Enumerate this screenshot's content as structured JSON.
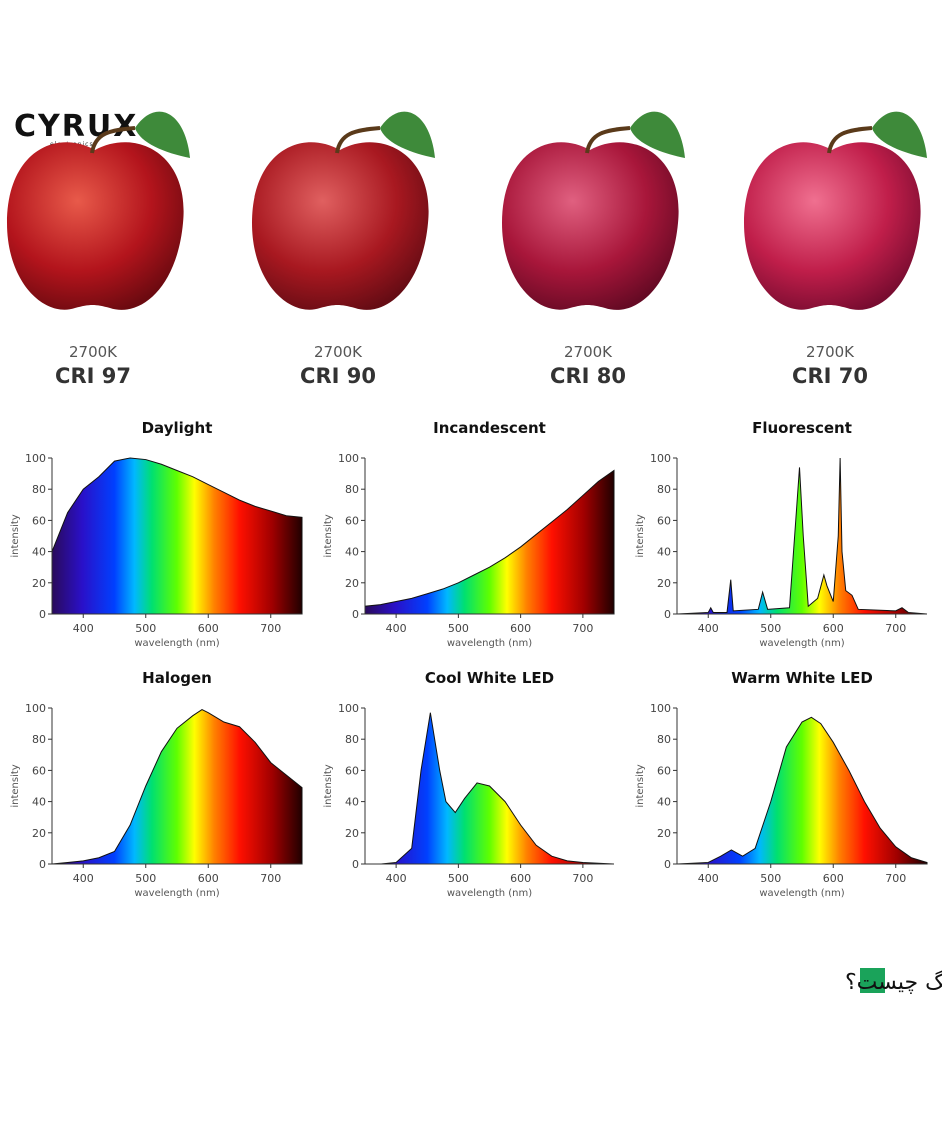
{
  "logo": {
    "name": "CYRUX",
    "tagline": "electronics"
  },
  "apples": [
    {
      "kelvin": "2700K",
      "cri": "CRI 97"
    },
    {
      "kelvin": "2700K",
      "cri": "CRI 90"
    },
    {
      "kelvin": "2700K",
      "cri": "CRI 80"
    },
    {
      "kelvin": "2700K",
      "cri": "CRI 70"
    }
  ],
  "chart_data": [
    {
      "type": "area",
      "title": "Daylight",
      "xlabel": "wavelength (nm)",
      "ylabel": "intensity",
      "x": [
        350,
        375,
        400,
        425,
        450,
        475,
        500,
        525,
        550,
        575,
        600,
        625,
        650,
        675,
        700,
        725,
        750
      ],
      "values": [
        40,
        65,
        80,
        88,
        98,
        100,
        99,
        96,
        92,
        88,
        83,
        78,
        73,
        69,
        66,
        63,
        62
      ],
      "xlim": [
        350,
        750
      ],
      "ylim": [
        0,
        100
      ],
      "xticks": [
        400,
        500,
        600,
        700
      ],
      "yticks": [
        0,
        20,
        40,
        60,
        80,
        100
      ]
    },
    {
      "type": "area",
      "title": "Incandescent",
      "xlabel": "wavelength (nm)",
      "ylabel": "intensity",
      "x": [
        350,
        375,
        400,
        425,
        450,
        475,
        500,
        525,
        550,
        575,
        600,
        625,
        650,
        675,
        700,
        725,
        750
      ],
      "values": [
        5,
        6,
        8,
        10,
        13,
        16,
        20,
        25,
        30,
        36,
        43,
        51,
        59,
        67,
        76,
        85,
        92
      ],
      "xlim": [
        350,
        750
      ],
      "ylim": [
        0,
        100
      ],
      "xticks": [
        400,
        500,
        600,
        700
      ],
      "yticks": [
        0,
        20,
        40,
        60,
        80,
        100
      ]
    },
    {
      "type": "area",
      "title": "Fluorescent",
      "xlabel": "wavelength (nm)",
      "ylabel": "intensity",
      "x": [
        350,
        400,
        404,
        408,
        430,
        436,
        440,
        480,
        487,
        495,
        530,
        540,
        546,
        552,
        560,
        575,
        585,
        590,
        600,
        608,
        611,
        614,
        620,
        630,
        640,
        700,
        710,
        720,
        750
      ],
      "values": [
        0,
        1,
        4,
        1,
        1,
        22,
        2,
        3,
        14,
        3,
        4,
        60,
        94,
        50,
        5,
        10,
        25,
        18,
        8,
        50,
        100,
        40,
        15,
        12,
        3,
        2,
        4,
        1,
        0
      ],
      "xlim": [
        350,
        750
      ],
      "ylim": [
        0,
        100
      ],
      "xticks": [
        400,
        500,
        600,
        700
      ],
      "yticks": [
        0,
        20,
        40,
        60,
        80,
        100
      ]
    },
    {
      "type": "area",
      "title": "Halogen",
      "xlabel": "wavelength (nm)",
      "ylabel": "intensity",
      "x": [
        350,
        375,
        400,
        425,
        450,
        475,
        500,
        525,
        550,
        575,
        590,
        600,
        625,
        650,
        675,
        700,
        725,
        750
      ],
      "values": [
        0,
        1,
        2,
        4,
        8,
        25,
        50,
        72,
        87,
        95,
        99,
        97,
        91,
        88,
        78,
        65,
        57,
        49
      ],
      "xlim": [
        350,
        750
      ],
      "ylim": [
        0,
        100
      ],
      "xticks": [
        400,
        500,
        600,
        700
      ],
      "yticks": [
        0,
        20,
        40,
        60,
        80,
        100
      ]
    },
    {
      "type": "area",
      "title": "Cool White LED",
      "xlabel": "wavelength (nm)",
      "ylabel": "intensity",
      "x": [
        350,
        375,
        400,
        425,
        440,
        455,
        470,
        480,
        495,
        510,
        530,
        550,
        575,
        600,
        625,
        650,
        675,
        700,
        750
      ],
      "values": [
        0,
        0,
        1,
        10,
        60,
        97,
        60,
        40,
        33,
        42,
        52,
        50,
        40,
        25,
        12,
        5,
        2,
        1,
        0
      ],
      "xlim": [
        350,
        750
      ],
      "ylim": [
        0,
        100
      ],
      "xticks": [
        400,
        500,
        600,
        700
      ],
      "yticks": [
        0,
        20,
        40,
        60,
        80,
        100
      ]
    },
    {
      "type": "area",
      "title": "Warm White LED",
      "xlabel": "wavelength (nm)",
      "ylabel": "intensity",
      "x": [
        350,
        400,
        420,
        437,
        455,
        475,
        500,
        525,
        550,
        565,
        580,
        600,
        625,
        650,
        675,
        700,
        725,
        750
      ],
      "values": [
        0,
        1,
        5,
        9,
        5,
        10,
        40,
        75,
        91,
        94,
        90,
        78,
        60,
        40,
        23,
        11,
        4,
        1
      ],
      "xlim": [
        350,
        750
      ],
      "ylim": [
        0,
        100
      ],
      "xticks": [
        400,
        500,
        600,
        700
      ],
      "yticks": [
        0,
        20,
        40,
        60,
        80,
        100
      ]
    }
  ],
  "heading": "شاخص تفکیک رنگ چیست؟"
}
